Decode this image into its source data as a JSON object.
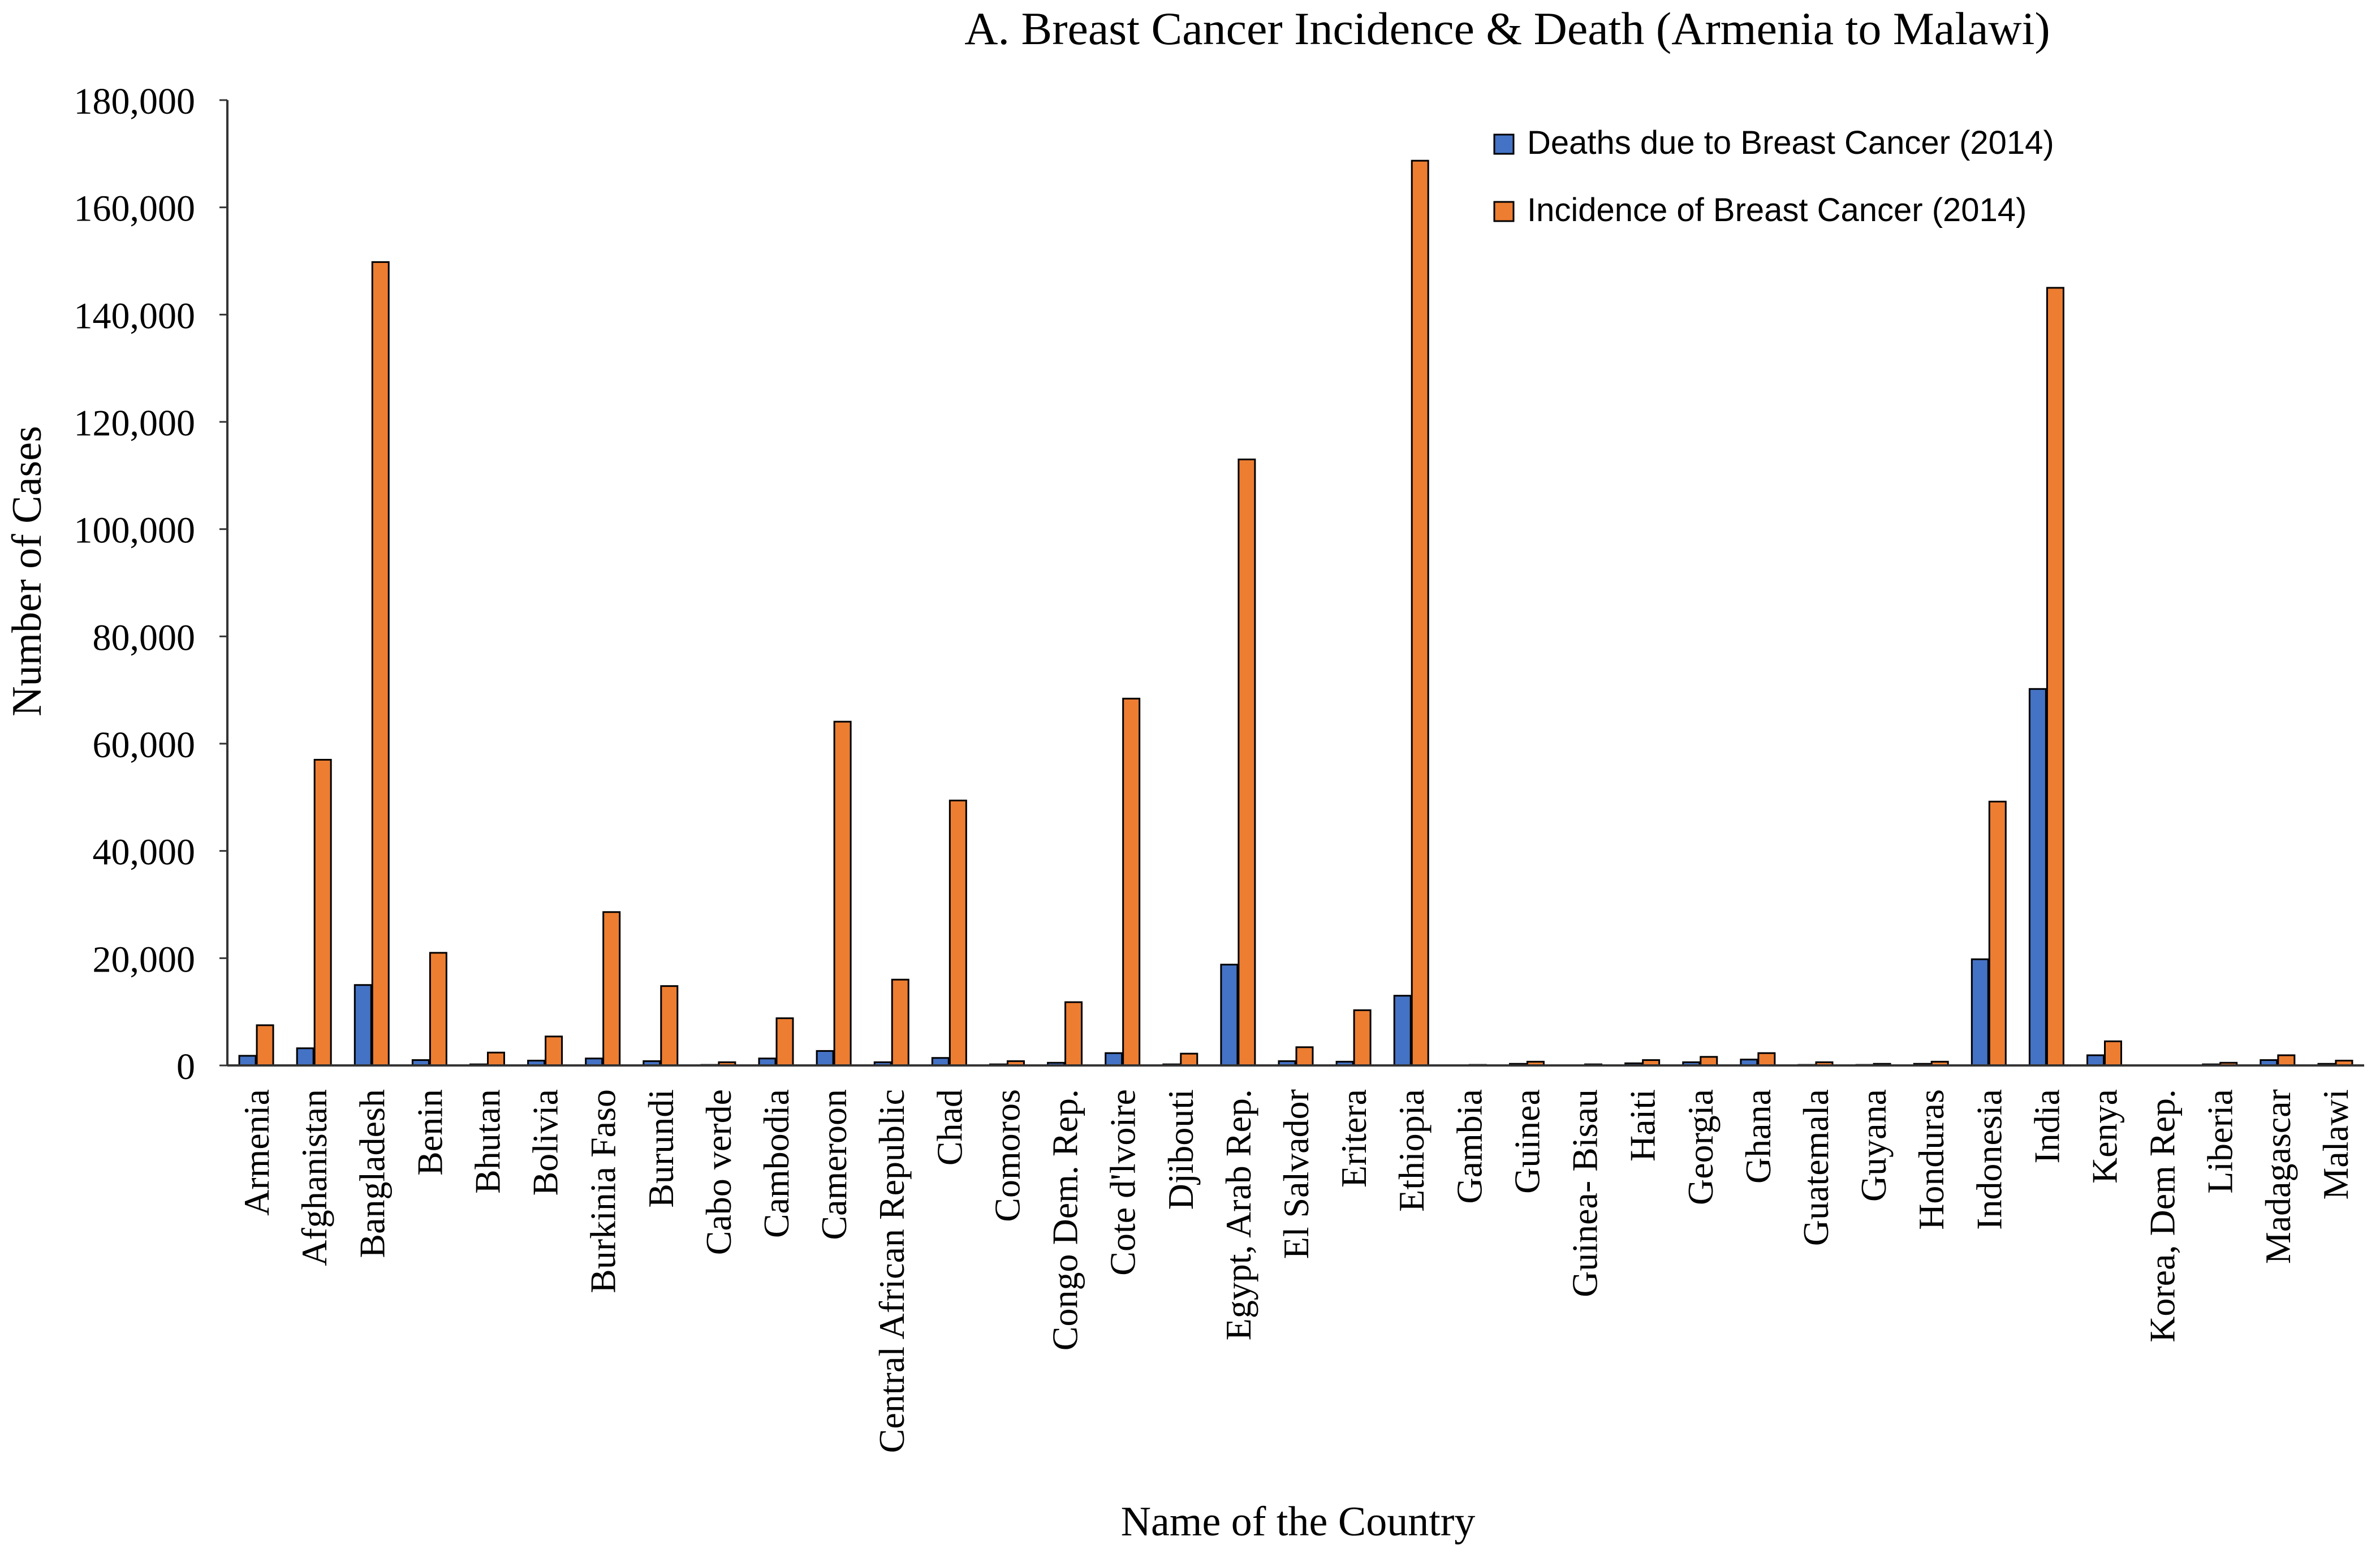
{
  "chart_data": {
    "type": "bar",
    "title": "A. Breast Cancer Incidence & Death (Armenia to Malawi)",
    "xlabel": "Name of the Country",
    "ylabel": "Number of Cases",
    "ylim": [
      0,
      180000
    ],
    "yticks": [
      "0",
      "20,000",
      "40,000",
      "60,000",
      "80,000",
      "100,000",
      "120,000",
      "140,000",
      "160,000",
      "180,000"
    ],
    "ytick_values": [
      0,
      20000,
      40000,
      60000,
      80000,
      100000,
      120000,
      140000,
      160000,
      180000
    ],
    "grid": false,
    "legend_position": "top-right",
    "categories": [
      "Armenia",
      "Afghanistan",
      "Bangladesh",
      "Benin",
      "Bhutan",
      "Bolivia",
      "Burkinia Faso",
      "Burundi",
      "Cabo verde",
      "Cambodia",
      "Cameroon",
      "Central African Republic",
      "Chad",
      "Comoros",
      "Congo Dem. Rep.",
      "Cote d'lvoire",
      "Djibouti",
      "Egypt, Arab Rep.",
      "El Salvador",
      "Eritera",
      "Ethiopia",
      "Gambia",
      "Guinea",
      "Guinea- Bisau",
      "Haiti",
      "Georgia",
      "Ghana",
      "Guatemala",
      "Guyana",
      "Honduras",
      "Indonesia",
      "India",
      "Kenya",
      "Korea, Dem Rep.",
      "Liberia",
      "Madagascar",
      "Malawi"
    ],
    "series": [
      {
        "name": "Deaths due to Breast Cancer (2014)",
        "color": "#4472C4",
        "values": [
          1800,
          3200,
          15000,
          1000,
          200,
          900,
          1300,
          800,
          100,
          1300,
          2700,
          600,
          1400,
          200,
          500,
          2300,
          200,
          18800,
          800,
          700,
          13000,
          50,
          300,
          50,
          400,
          600,
          1100,
          100,
          100,
          300,
          19800,
          70200,
          1900,
          0,
          200,
          1000,
          300
        ]
      },
      {
        "name": "Incidence of Breast Cancer (2014)",
        "color": "#ED7D31",
        "values": [
          7500,
          57000,
          149800,
          21000,
          2400,
          5400,
          28600,
          14800,
          600,
          8800,
          64100,
          16000,
          49400,
          800,
          11800,
          68400,
          2200,
          113000,
          3400,
          10300,
          168700,
          100,
          700,
          200,
          1000,
          1600,
          2300,
          600,
          300,
          700,
          49200,
          145000,
          4500,
          0,
          500,
          1900,
          900
        ]
      }
    ]
  }
}
